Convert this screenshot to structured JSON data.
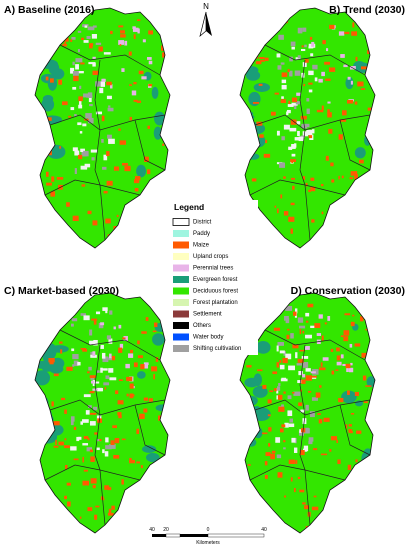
{
  "panels": [
    {
      "title": "A) Baseline (2016)"
    },
    {
      "title": "B) Trend (2030)"
    },
    {
      "title": "C) Market-based (2030)"
    },
    {
      "title": "D) Conservation (2030)"
    }
  ],
  "north": "N",
  "legend": {
    "title": "Legend",
    "items": [
      {
        "label": "District",
        "color": "#ffffff"
      },
      {
        "label": "Paddy",
        "color": "#9ff5e0"
      },
      {
        "label": "Maize",
        "color": "#ff5a00"
      },
      {
        "label": "Upland crops",
        "color": "#ffffc0"
      },
      {
        "label": "Perennial trees",
        "color": "#e8b4e8"
      },
      {
        "label": "Evergreen forest",
        "color": "#1a9e78"
      },
      {
        "label": "Deciduous forest",
        "color": "#33e600"
      },
      {
        "label": "Forest plantation",
        "color": "#d6f5b0"
      },
      {
        "label": "Settlement",
        "color": "#8b3a3a"
      },
      {
        "label": "Others",
        "color": "#000000"
      },
      {
        "label": "Water body",
        "color": "#0050ff"
      },
      {
        "label": "Shifting cultivation",
        "color": "#a0a0a0"
      }
    ]
  },
  "scale_bar": {
    "labels": [
      "40",
      "20",
      "0",
      "40"
    ],
    "unit": "Kilometers"
  }
}
